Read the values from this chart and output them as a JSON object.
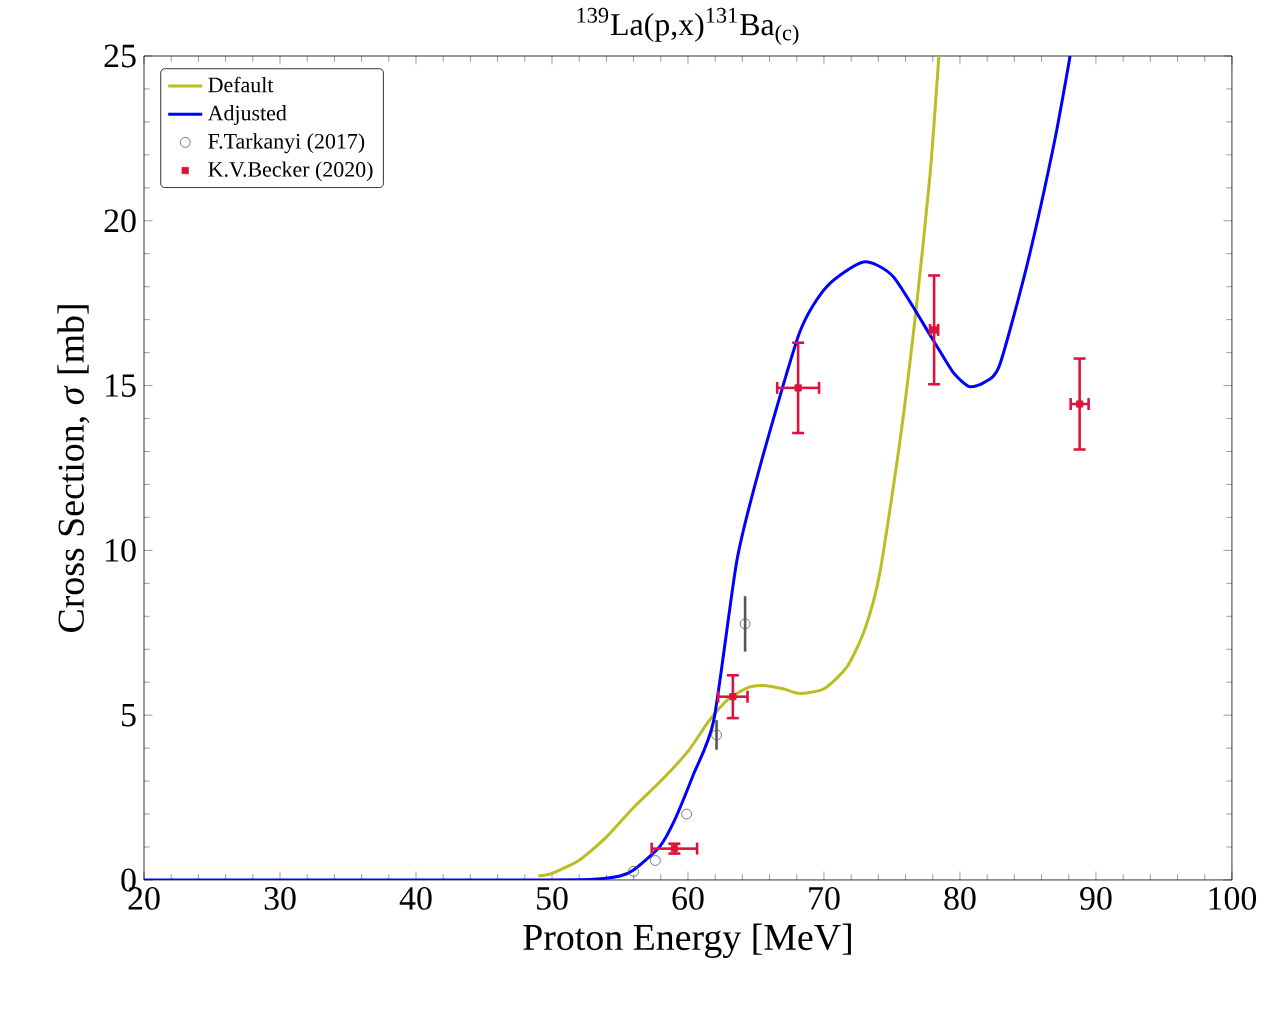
{
  "chart_data": {
    "type": "line",
    "title": "$^{139}$La(p,x)$^{131}$Ba$_{(c)}$",
    "xlabel": "Proton Energy [MeV]",
    "ylabel": "Cross Section, *σ* [mb]",
    "xlim": [
      20,
      100
    ],
    "ylim": [
      0,
      25
    ],
    "xticks": [
      20,
      30,
      40,
      50,
      60,
      70,
      80,
      90,
      100
    ],
    "yticks": [
      0,
      5,
      10,
      15,
      20,
      25
    ],
    "grid": false,
    "legend": "top left",
    "series": [
      {
        "name": "Default",
        "type": "line",
        "color": "#bcbd22",
        "marker": "none",
        "line_style": "solid",
        "x": [
          49,
          50,
          52,
          54,
          56,
          58,
          60,
          61.5,
          63,
          64.5,
          65.5,
          67,
          68.2,
          70,
          71.7,
          73,
          74.1,
          75.6,
          76.8,
          77.8,
          78.45
        ],
        "values": [
          0.12,
          0.2,
          0.6,
          1.3,
          2.2,
          3.0,
          3.9,
          4.8,
          5.5,
          5.85,
          5.9,
          5.8,
          5.66,
          5.8,
          6.47,
          7.6,
          9.3,
          13.35,
          17.4,
          21.4,
          25
        ]
      },
      {
        "name": "Adjusted",
        "type": "line",
        "color": "#0000ff",
        "marker": "none",
        "line_style": "solid",
        "x": [
          20,
          30,
          40,
          50,
          53,
          55,
          56,
          57.9,
          59,
          60.4,
          61.9,
          63.6,
          65.3,
          68.2,
          70.2,
          72.9,
          75.1,
          78.0,
          79.5,
          80.7,
          81.8,
          82.9,
          84.9,
          86.9,
          88.1
        ],
        "values": [
          0,
          0,
          0,
          0,
          0.02,
          0.12,
          0.3,
          1.0,
          1.8,
          3.2,
          4.85,
          9.7,
          12.55,
          16.6,
          18.0,
          18.75,
          18.3,
          16.4,
          15.4,
          14.97,
          15.1,
          15.6,
          18.6,
          22.3,
          25
        ]
      },
      {
        "name": "F.Tarkanyi (2017)",
        "type": "scatter",
        "color": "#555555",
        "marker": "circle",
        "line_style": "none",
        "x": [
          56.0,
          57.6,
          59.9,
          62.1,
          64.2
        ],
        "values": [
          0.26,
          0.59,
          2.0,
          4.4,
          7.77
        ],
        "errors": [
          null,
          null,
          null,
          0.45,
          0.84
        ]
      },
      {
        "name": "K.V.Becker (2020)",
        "type": "scatter",
        "color": "#dc143c",
        "marker": "square",
        "line_style": "none",
        "x": [
          59.0,
          63.3,
          68.1,
          78.1,
          88.8
        ],
        "values": [
          0.95,
          5.56,
          14.93,
          16.69,
          14.44
        ],
        "errors": [
          0.15,
          0.65,
          1.37,
          1.65,
          1.38
        ],
        "xerrors": [
          1.67,
          1.08,
          1.54,
          0.3,
          0.66
        ]
      }
    ]
  }
}
